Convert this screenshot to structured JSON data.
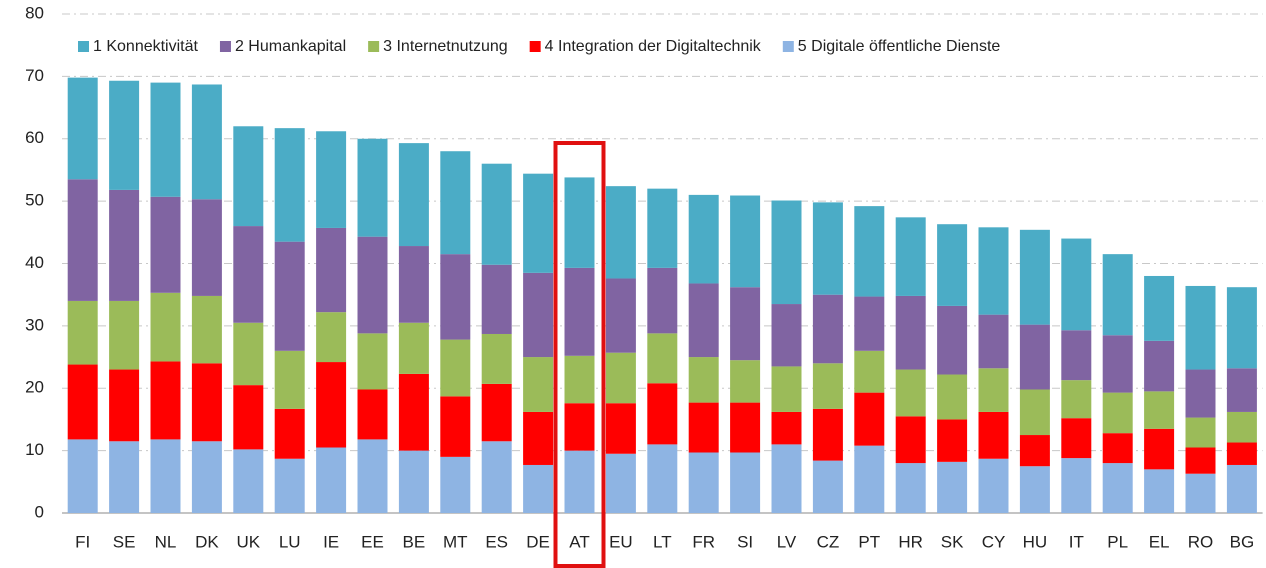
{
  "chart_data": {
    "type": "bar",
    "stacked": true,
    "categories": [
      "FI",
      "SE",
      "NL",
      "DK",
      "UK",
      "LU",
      "IE",
      "EE",
      "BE",
      "MT",
      "ES",
      "DE",
      "AT",
      "EU",
      "LT",
      "FR",
      "SI",
      "LV",
      "CZ",
      "PT",
      "HR",
      "SK",
      "CY",
      "HU",
      "IT",
      "PL",
      "EL",
      "RO",
      "BG"
    ],
    "series": [
      {
        "name": "1 Konnektivität",
        "color": "#4bacc6",
        "values": [
          16.3,
          17.5,
          18.3,
          18.4,
          16.0,
          18.2,
          15.5,
          15.7,
          16.5,
          16.5,
          16.2,
          15.9,
          14.5,
          14.8,
          12.7,
          14.2,
          14.7,
          16.6,
          14.8,
          14.5,
          12.6,
          13.1,
          14.0,
          15.2,
          14.7,
          13.0,
          10.4,
          13.4,
          13.0
        ]
      },
      {
        "name": "2 Humankapital",
        "color": "#8064a2",
        "values": [
          19.5,
          17.8,
          15.4,
          15.5,
          15.5,
          17.5,
          13.5,
          15.5,
          12.3,
          13.7,
          11.1,
          13.5,
          14.1,
          11.9,
          10.5,
          11.8,
          11.7,
          10.0,
          11.0,
          8.7,
          11.8,
          11.0,
          8.6,
          10.4,
          8.0,
          9.2,
          8.1,
          7.7,
          7.0
        ]
      },
      {
        "name": "3 Internetnutzung",
        "color": "#9bbb59",
        "values": [
          10.2,
          11.0,
          11.0,
          10.8,
          10.0,
          9.3,
          8.0,
          9.0,
          8.2,
          9.1,
          8.0,
          8.8,
          7.6,
          8.1,
          8.0,
          7.3,
          6.8,
          7.3,
          7.3,
          6.7,
          7.5,
          7.2,
          7.0,
          7.3,
          6.1,
          6.5,
          6.0,
          4.8,
          4.9
        ]
      },
      {
        "name": "4 Integration der Digitaltechnik",
        "color": "#ff0000",
        "values": [
          12.0,
          11.5,
          12.5,
          12.5,
          10.3,
          8.0,
          13.7,
          8.0,
          12.3,
          9.7,
          9.2,
          8.5,
          7.6,
          8.1,
          9.8,
          8.0,
          8.0,
          5.2,
          8.3,
          8.5,
          7.5,
          6.8,
          7.5,
          5.0,
          6.4,
          4.8,
          6.5,
          4.2,
          3.6
        ]
      },
      {
        "name": "5 Digitale öffentliche Dienste",
        "color": "#8eb4e3",
        "values": [
          11.8,
          11.5,
          11.8,
          11.5,
          10.2,
          8.7,
          10.5,
          11.8,
          10.0,
          9.0,
          11.5,
          7.7,
          10.0,
          9.5,
          11.0,
          9.7,
          9.7,
          11.0,
          8.4,
          10.8,
          8.0,
          8.2,
          8.7,
          7.5,
          8.8,
          8.0,
          7.0,
          6.3,
          7.7
        ]
      }
    ],
    "stack_order": "bottom-up from last series",
    "ylim": [
      0,
      80
    ],
    "yticks": [
      0,
      10,
      20,
      30,
      40,
      50,
      60,
      70,
      80
    ],
    "grid": true,
    "legend": "top",
    "highlight": "AT"
  }
}
